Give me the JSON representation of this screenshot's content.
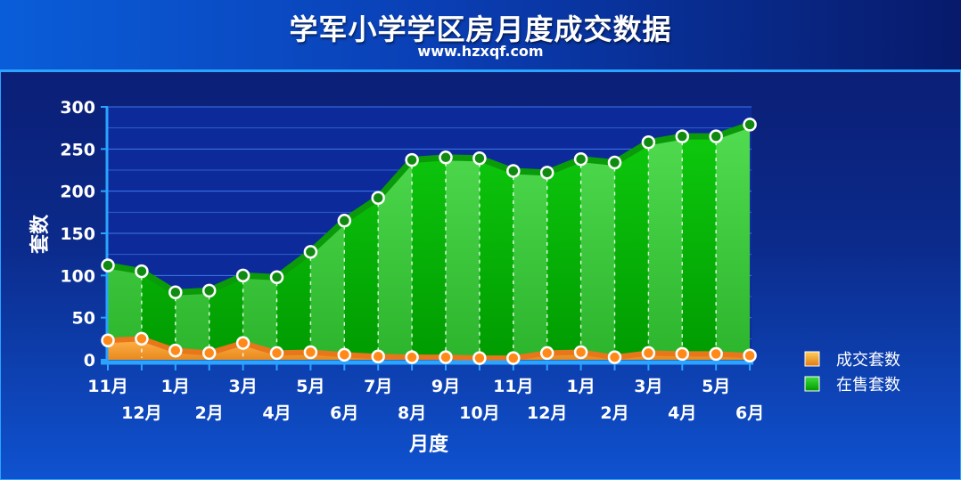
{
  "header": {
    "title": "学军小学学区房月度成交数据",
    "subtitle": "www.hzxqf.com"
  },
  "chart_data": {
    "type": "area",
    "xlabel": "月度",
    "ylabel": "套数",
    "ylim": [
      0,
      300
    ],
    "yticks": [
      0,
      50,
      100,
      150,
      200,
      250,
      300
    ],
    "categories": [
      "11月",
      "12月",
      "1月",
      "2月",
      "3月",
      "4月",
      "5月",
      "6月",
      "7月",
      "8月",
      "9月",
      "10月",
      "11月",
      "12月",
      "1月",
      "2月",
      "3月",
      "4月",
      "5月",
      "6月"
    ],
    "series": [
      {
        "name": "在售套数",
        "color": "#22cc22",
        "values": [
          112,
          105,
          80,
          82,
          100,
          98,
          128,
          165,
          192,
          237,
          240,
          239,
          224,
          222,
          238,
          234,
          258,
          265,
          265,
          279
        ]
      },
      {
        "name": "成交套数",
        "color": "#ff8c1a",
        "values": [
          23,
          25,
          11,
          8,
          20,
          8,
          9,
          6,
          4,
          3,
          3,
          2,
          2,
          8,
          9,
          3,
          8,
          7,
          7,
          5
        ]
      }
    ],
    "legend_position": "right"
  }
}
